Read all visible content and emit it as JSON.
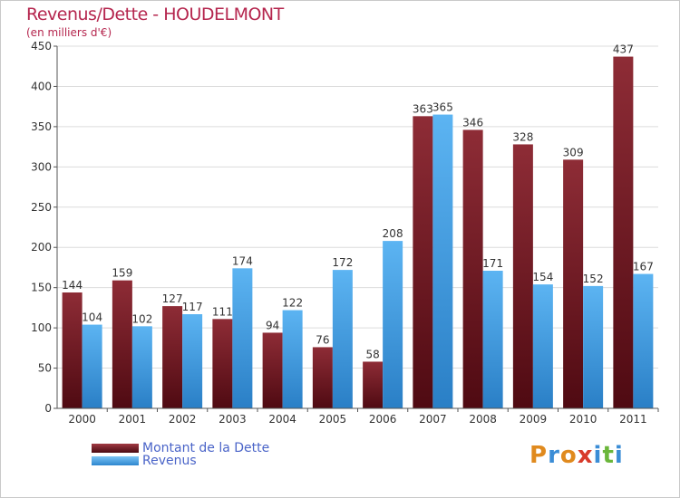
{
  "chart_data": {
    "type": "bar",
    "title": "Revenus/Dette - HOUDELMONT",
    "subtitle": "(en milliers d'€)",
    "xlabel": "",
    "ylabel": "",
    "ylim": [
      0,
      450
    ],
    "yticks": [
      0,
      50,
      100,
      150,
      200,
      250,
      300,
      350,
      400,
      450
    ],
    "grid": true,
    "categories": [
      "2000",
      "2001",
      "2002",
      "2003",
      "2004",
      "2005",
      "2006",
      "2007",
      "2008",
      "2009",
      "2010",
      "2011"
    ],
    "series": [
      {
        "name": "Montant de la Dette",
        "color": "#7a1a24",
        "values": [
          144,
          159,
          127,
          111,
          94,
          76,
          58,
          363,
          346,
          328,
          309,
          437
        ]
      },
      {
        "name": "Revenus",
        "color": "#4aa3e8",
        "values": [
          104,
          102,
          117,
          174,
          122,
          172,
          208,
          365,
          171,
          154,
          152,
          167
        ]
      }
    ],
    "legend_placement": "bottom-left"
  },
  "logo": {
    "text": "Proxiti",
    "letters": [
      "P",
      "r",
      "o",
      "x",
      "i",
      "t",
      "i"
    ],
    "colors": [
      "#e08a1e",
      "#3b8dd6",
      "#e08a1e",
      "#d83a2a",
      "#3b8dd6",
      "#6ab63a",
      "#3b8dd6"
    ]
  }
}
